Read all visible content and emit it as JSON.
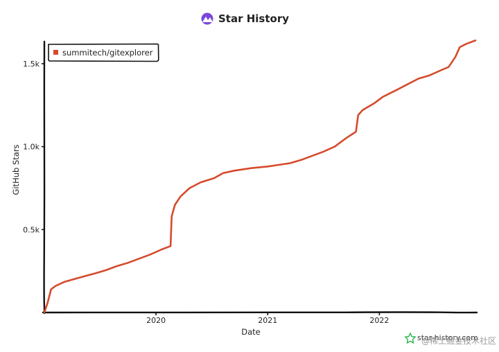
{
  "chart_data": {
    "type": "line",
    "title": "Star History",
    "xlabel": "Date",
    "ylabel": "GitHub Stars",
    "x_tick_labels": [
      "2020",
      "2021",
      "2022"
    ],
    "y_tick_labels": [
      "0.5k",
      "1.0k",
      "1.5k"
    ],
    "y_ticks": [
      500,
      1000,
      1500
    ],
    "x_ticks": [
      2020.0,
      2021.0,
      2022.0
    ],
    "xlim": [
      2019.0,
      2022.86
    ],
    "ylim": [
      0,
      1650
    ],
    "legend_position": "top-left",
    "grid": false,
    "series": [
      {
        "name": "summitech/gitexplorer",
        "color": "#d64a2b",
        "points": [
          [
            2019.0,
            0
          ],
          [
            2019.03,
            60
          ],
          [
            2019.06,
            140
          ],
          [
            2019.1,
            160
          ],
          [
            2019.18,
            185
          ],
          [
            2019.26,
            200
          ],
          [
            2019.34,
            215
          ],
          [
            2019.45,
            235
          ],
          [
            2019.55,
            255
          ],
          [
            2019.65,
            280
          ],
          [
            2019.75,
            300
          ],
          [
            2019.85,
            325
          ],
          [
            2019.95,
            350
          ],
          [
            2020.05,
            380
          ],
          [
            2020.13,
            400
          ],
          [
            2020.14,
            580
          ],
          [
            2020.17,
            650
          ],
          [
            2020.22,
            700
          ],
          [
            2020.3,
            750
          ],
          [
            2020.4,
            785
          ],
          [
            2020.52,
            810
          ],
          [
            2020.6,
            840
          ],
          [
            2020.7,
            855
          ],
          [
            2020.85,
            870
          ],
          [
            2021.0,
            880
          ],
          [
            2021.1,
            890
          ],
          [
            2021.2,
            900
          ],
          [
            2021.3,
            920
          ],
          [
            2021.4,
            945
          ],
          [
            2021.5,
            970
          ],
          [
            2021.6,
            1000
          ],
          [
            2021.7,
            1050
          ],
          [
            2021.79,
            1090
          ],
          [
            2021.8,
            1140
          ],
          [
            2021.81,
            1190
          ],
          [
            2021.85,
            1220
          ],
          [
            2021.95,
            1260
          ],
          [
            2022.03,
            1300
          ],
          [
            2022.15,
            1340
          ],
          [
            2022.25,
            1375
          ],
          [
            2022.35,
            1410
          ],
          [
            2022.45,
            1430
          ],
          [
            2022.55,
            1460
          ],
          [
            2022.62,
            1480
          ],
          [
            2022.68,
            1540
          ],
          [
            2022.72,
            1600
          ],
          [
            2022.78,
            1620
          ],
          [
            2022.86,
            1640
          ]
        ]
      }
    ]
  },
  "watermark": {
    "site": "star-history.com",
    "overlay": "@稀土掘金技术社区"
  },
  "colors": {
    "line": "#d64a2b",
    "axis": "#111111",
    "logo": "#7b47d9"
  }
}
